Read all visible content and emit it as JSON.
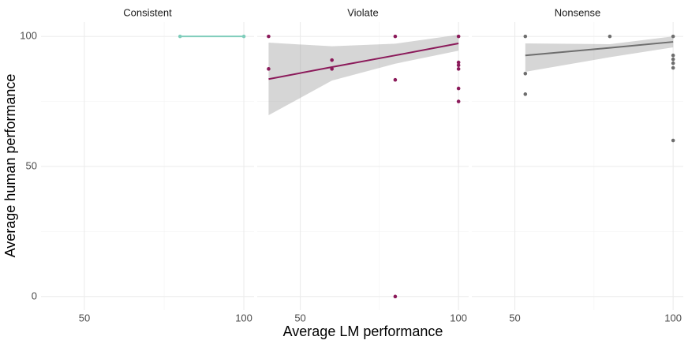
{
  "chart_data": {
    "type": "scatter",
    "x_label": "Average LM performance",
    "y_label": "Average human performance",
    "ylim": [
      -5.2,
      105.5
    ],
    "yticks": [
      0,
      50,
      100
    ],
    "y_minor_grid": [
      25,
      75
    ],
    "grid": true,
    "panels": [
      {
        "title": "Consistent",
        "color": "#7fcdbb",
        "x": [
          80,
          100
        ],
        "values": [
          100,
          100
        ],
        "xlim": [
          36.4,
          103.2
        ],
        "xticks": [
          50,
          100
        ],
        "x_minor_grid": [
          75
        ],
        "fit": {
          "x": [
            80,
            100
          ],
          "values": [
            100,
            100
          ]
        }
      },
      {
        "title": "Violate",
        "color": "#8b1a5a",
        "x": [
          40,
          40,
          60,
          60,
          80,
          80,
          80,
          100,
          100,
          100,
          100,
          100,
          100
        ],
        "values": [
          100,
          87.5,
          90.9,
          87.5,
          100,
          83.3,
          0,
          100,
          90,
          88.9,
          87.5,
          80,
          75
        ],
        "xlim": [
          36.4,
          103.2
        ],
        "xticks": [
          50,
          100
        ],
        "x_minor_grid": [
          75
        ],
        "fit": {
          "x": [
            40,
            60,
            80,
            100
          ],
          "values": [
            83.6,
            88.2,
            92.7,
            97.3
          ],
          "lower": [
            69.7,
            83,
            89.5,
            94.5
          ],
          "upper": [
            97.6,
            96.2,
            97.2,
            100.6
          ]
        }
      },
      {
        "title": "Nonsense",
        "color": "#6e6e6e",
        "x": [
          53.3,
          53.3,
          53.3,
          80,
          100,
          100,
          100,
          100,
          100,
          100
        ],
        "values": [
          100,
          85.7,
          77.8,
          100,
          100,
          92.7,
          91.2,
          89.7,
          87.9,
          60
        ],
        "xlim": [
          36.4,
          103.2
        ],
        "xticks": [
          50,
          100
        ],
        "x_minor_grid": [
          75
        ],
        "fit": {
          "x": [
            53.3,
            80,
            100
          ],
          "values": [
            92.7,
            95.6,
            97.9
          ],
          "lower": [
            86.4,
            92,
            95.8
          ],
          "upper": [
            97.3,
            97,
            100
          ]
        }
      }
    ]
  }
}
